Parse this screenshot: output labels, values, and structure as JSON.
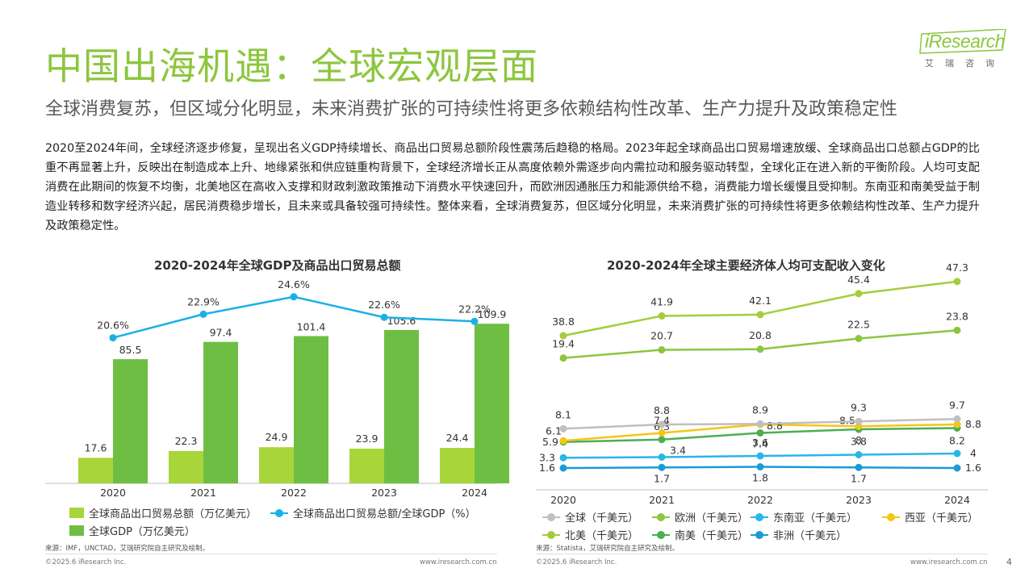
{
  "header": {
    "title": "中国出海机遇：全球宏观层面",
    "subtitle": "全球消费复苏，但区域分化明显，未来消费扩张的可持续性将更多依赖结构性改革、生产力提升及政策稳定性",
    "body": "2020至2024年间，全球经济逐步修复，呈现出名义GDP持续增长、商品出口贸易总额阶段性震荡后趋稳的格局。2023年起全球商品出口贸易增速放缓、全球商品出口总额占GDP的比重不再显著上升，反映出在制造成本上升、地缘紧张和供应链重构背景下，全球经济增长正从高度依赖外需逐步向内需拉动和服务驱动转型，全球化正在进入新的平衡阶段。人均可支配消费在此期间的恢复不均衡，北美地区在高收入支撑和财政刺激政策推动下消费水平快速回升，而欧洲因通胀压力和能源供给不稳，消费能力增长缓慢且受抑制。东南亚和南美受益于制造业转移和数字经济兴起，居民消费稳步增长，且未来或具备较强可持续性。整体来看，全球消费复苏，但区域分化明显，未来消费扩张的可持续性将更多依赖结构性改革、生产力提升及政策稳定性。"
  },
  "logo": {
    "word": "iResearch",
    "sub": "艾瑞咨询"
  },
  "colors": {
    "accent": "#8cc63f",
    "export_bar": "#a8d53a",
    "gdp_bar": "#6fbe44",
    "ratio_line": "#1ab0e6",
    "global": "#bfbfbf",
    "europe": "#8cc63f",
    "southeast_asia": "#29b6e8",
    "west_asia": "#f5c518",
    "north_america": "#a3cd3b",
    "south_america": "#4caf50",
    "africa": "#1a9bd7"
  },
  "chart_data": [
    {
      "type": "bar",
      "title": "2020-2024年全球GDP及商品出口贸易总额",
      "categories": [
        "2020",
        "2021",
        "2022",
        "2023",
        "2024"
      ],
      "series": [
        {
          "name": "全球商品出口贸易总额（万亿美元）",
          "values": [
            17.6,
            22.3,
            24.9,
            23.9,
            24.4
          ]
        },
        {
          "name": "全球GDP（万亿美元）",
          "values": [
            85.5,
            97.4,
            101.4,
            105.6,
            109.9
          ]
        },
        {
          "name": "全球商品出口贸易总额/全球GDP（%）",
          "type": "line",
          "values": [
            20.6,
            22.9,
            24.6,
            22.6,
            22.2
          ],
          "labels": [
            "20.6%",
            "22.9%",
            "24.6%",
            "22.6%",
            "22.2%"
          ]
        }
      ],
      "legend": [
        "全球商品出口贸易总额（万亿美元）",
        "全球商品出口贸易总额/全球GDP（%）",
        "全球GDP（万亿美元）"
      ]
    },
    {
      "type": "line",
      "title": "2020-2024年全球主要经济体人均可支配收入变化",
      "categories": [
        "2020",
        "2021",
        "2022",
        "2023",
        "2024"
      ],
      "series": [
        {
          "name": "北美（千美元）",
          "key": "north_america",
          "values": [
            38.8,
            41.9,
            42.1,
            45.4,
            47.3
          ]
        },
        {
          "name": "欧洲（千美元）",
          "key": "europe",
          "values": [
            19.4,
            20.7,
            20.8,
            22.5,
            23.8
          ]
        },
        {
          "name": "全球（千美元）",
          "key": "global",
          "values": [
            8.1,
            8.8,
            8.9,
            9.3,
            9.7
          ]
        },
        {
          "name": "西亚（千美元）",
          "key": "west_asia",
          "values": [
            6.1,
            7.4,
            8.8,
            8.5,
            8.8
          ]
        },
        {
          "name": "南美（千美元）",
          "key": "south_america",
          "values": [
            5.9,
            6.3,
            7.4,
            8.0,
            8.2
          ]
        },
        {
          "name": "东南亚（千美元）",
          "key": "southeast_asia",
          "values": [
            3.3,
            3.4,
            3.6,
            3.8,
            4.0
          ]
        },
        {
          "name": "非洲（千美元）",
          "key": "africa",
          "values": [
            1.6,
            1.7,
            1.8,
            1.7,
            1.6
          ]
        }
      ],
      "legend_row1": [
        "全球（千美元）",
        "欧洲（千美元）",
        "东南亚（千美元）",
        "西亚（千美元）"
      ],
      "legend_row2": [
        "北美（千美元）",
        "南美（千美元）",
        "非洲（千美元）"
      ]
    }
  ],
  "sources": {
    "left": "来源：IMF，UNCTAD，艾瑞研究院自主研究及绘制。",
    "right": "来源：Statista，艾瑞研究院自主研究及绘制。"
  },
  "footer": {
    "copyright_left": "©2025.6 iResearch Inc.",
    "site_left": "www.iresearch.com.cn",
    "copyright_right": "©2025.6 iResearch Inc.",
    "site_right": "www.iresearch.com.cn",
    "page": "4"
  }
}
